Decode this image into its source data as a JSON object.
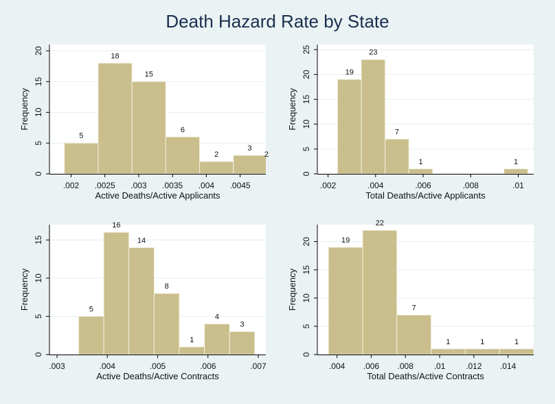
{
  "figure": {
    "title": "Death Hazard Rate by State",
    "background_color": "#eaf2f3",
    "plot_background_color": "#ffffff",
    "bar_fill_color": "#c9be8c",
    "bar_edge_color": "#f4f0e0",
    "grid_color": "#e6eef0"
  },
  "chart_data": [
    {
      "type": "bar",
      "histogram": true,
      "xlabel": "Active Deaths/Active Applicants",
      "ylabel": "Frequency",
      "xlim": [
        0.00168,
        0.00488
      ],
      "ylim": [
        0,
        21
      ],
      "x_ticks": [
        0.002,
        0.0025,
        0.003,
        0.0035,
        0.004,
        0.0045
      ],
      "x_tick_labels": [
        ".002",
        ".0025",
        ".003",
        ".0035",
        ".004",
        ".0045"
      ],
      "y_ticks": [
        0,
        5,
        10,
        15,
        20
      ],
      "y_tick_labels": [
        "0",
        "5",
        "10",
        "15",
        "20"
      ],
      "grid": true,
      "bins": [
        {
          "start": 0.0019,
          "end": 0.0024,
          "value": 5,
          "label": "5"
        },
        {
          "start": 0.0024,
          "end": 0.0029,
          "value": 18,
          "label": "18"
        },
        {
          "start": 0.0029,
          "end": 0.0034,
          "value": 15,
          "label": "15"
        },
        {
          "start": 0.0034,
          "end": 0.0039,
          "value": 6,
          "label": "6"
        },
        {
          "start": 0.0039,
          "end": 0.0044,
          "value": 2,
          "label": "2"
        },
        {
          "start": 0.0044,
          "end": 0.0049,
          "value": 3,
          "label": "3"
        },
        {
          "start": 0.0049,
          "end": 0.0054,
          "value": 2,
          "label": "2"
        }
      ]
    },
    {
      "type": "bar",
      "histogram": true,
      "xlabel": "Total Deaths/Active Applicants",
      "ylabel": "Frequency",
      "xlim": [
        0.00155,
        0.01065
      ],
      "ylim": [
        0,
        26
      ],
      "x_ticks": [
        0.002,
        0.004,
        0.006,
        0.008,
        0.01
      ],
      "x_tick_labels": [
        ".002",
        ".004",
        ".006",
        ".008",
        ".01"
      ],
      "y_ticks": [
        0,
        5,
        10,
        15,
        20,
        25
      ],
      "y_tick_labels": [
        "0",
        "5",
        "10",
        "15",
        "20",
        "25"
      ],
      "grid": true,
      "bins": [
        {
          "start": 0.0024,
          "end": 0.0034,
          "value": 19,
          "label": "19"
        },
        {
          "start": 0.0034,
          "end": 0.0044,
          "value": 23,
          "label": "23"
        },
        {
          "start": 0.0044,
          "end": 0.0054,
          "value": 7,
          "label": "7"
        },
        {
          "start": 0.0054,
          "end": 0.0064,
          "value": 1,
          "label": "1"
        },
        {
          "start": 0.0064,
          "end": 0.0074,
          "value": 0,
          "label": ""
        },
        {
          "start": 0.0074,
          "end": 0.0084,
          "value": 0,
          "label": ""
        },
        {
          "start": 0.0084,
          "end": 0.0094,
          "value": 0,
          "label": ""
        },
        {
          "start": 0.0094,
          "end": 0.0104,
          "value": 1,
          "label": "1"
        }
      ]
    },
    {
      "type": "bar",
      "histogram": true,
      "xlabel": "Active Deaths/Active Contracts",
      "ylabel": "Frequency",
      "xlim": [
        0.00285,
        0.00715
      ],
      "ylim": [
        0,
        17
      ],
      "x_ticks": [
        0.003,
        0.004,
        0.005,
        0.006,
        0.007
      ],
      "x_tick_labels": [
        ".003",
        ".004",
        ".005",
        ".006",
        ".007"
      ],
      "y_ticks": [
        0,
        5,
        10,
        15
      ],
      "y_tick_labels": [
        "0",
        "5",
        "10",
        "15"
      ],
      "grid": true,
      "bins": [
        {
          "start": 0.00343,
          "end": 0.00393,
          "value": 5,
          "label": "5"
        },
        {
          "start": 0.00393,
          "end": 0.00443,
          "value": 16,
          "label": "16"
        },
        {
          "start": 0.00443,
          "end": 0.00493,
          "value": 14,
          "label": "14"
        },
        {
          "start": 0.00493,
          "end": 0.00543,
          "value": 8,
          "label": "8"
        },
        {
          "start": 0.00543,
          "end": 0.00593,
          "value": 1,
          "label": "1"
        },
        {
          "start": 0.00593,
          "end": 0.00643,
          "value": 4,
          "label": "4"
        },
        {
          "start": 0.00643,
          "end": 0.00693,
          "value": 3,
          "label": "3"
        }
      ]
    },
    {
      "type": "bar",
      "histogram": true,
      "xlabel": "Total Deaths/Active Contracts",
      "ylabel": "Frequency",
      "xlim": [
        0.00285,
        0.0155
      ],
      "ylim": [
        0,
        23
      ],
      "x_ticks": [
        0.004,
        0.006,
        0.008,
        0.01,
        0.012,
        0.014
      ],
      "x_tick_labels": [
        ".004",
        ".006",
        ".008",
        ".01",
        ".012",
        ".014"
      ],
      "y_ticks": [
        0,
        5,
        10,
        15,
        20
      ],
      "y_tick_labels": [
        "0",
        "5",
        "10",
        "15",
        "20"
      ],
      "grid": true,
      "bins": [
        {
          "start": 0.0035,
          "end": 0.0055,
          "value": 19,
          "label": "19"
        },
        {
          "start": 0.0055,
          "end": 0.0075,
          "value": 22,
          "label": "22"
        },
        {
          "start": 0.0075,
          "end": 0.0095,
          "value": 7,
          "label": "7"
        },
        {
          "start": 0.0095,
          "end": 0.0115,
          "value": 1,
          "label": "1"
        },
        {
          "start": 0.0115,
          "end": 0.0135,
          "value": 1,
          "label": "1"
        },
        {
          "start": 0.0135,
          "end": 0.0155,
          "value": 1,
          "label": "1"
        }
      ]
    }
  ]
}
